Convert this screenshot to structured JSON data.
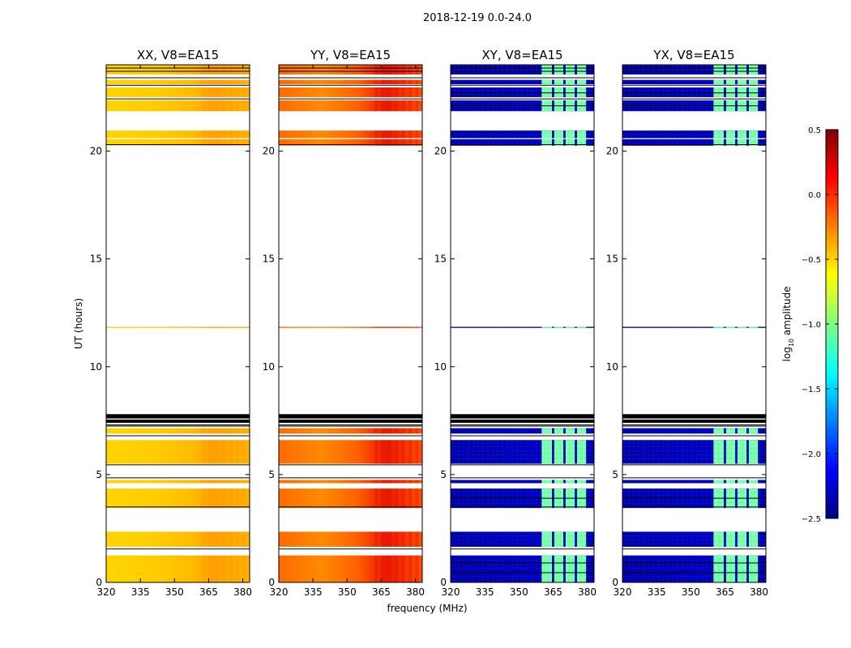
{
  "figure": {
    "suptitle": "2018-12-19 0.0-24.0"
  },
  "chart_data": [
    {
      "type": "heatmap",
      "title": "XX, V8=EA15",
      "xlabel": "",
      "ylabel": "UT (hours)",
      "xlim": [
        320,
        383
      ],
      "ylim": [
        0,
        24
      ],
      "xticks": [
        320,
        335,
        350,
        365,
        380
      ],
      "yticks": [
        0,
        5,
        10,
        15,
        20
      ],
      "palette": "parallel-xx",
      "data_hours": [
        [
          0.0,
          1.25
        ],
        [
          1.65,
          2.35
        ],
        [
          3.45,
          4.35
        ],
        [
          4.6,
          4.75
        ],
        [
          5.5,
          6.6
        ],
        [
          6.9,
          7.15
        ],
        [
          11.8,
          11.85
        ],
        [
          20.25,
          20.55
        ],
        [
          20.6,
          20.95
        ],
        [
          21.85,
          22.35
        ],
        [
          22.5,
          22.95
        ],
        [
          23.1,
          23.3
        ],
        [
          23.55,
          24.0
        ]
      ],
      "dense_flag_hours": [
        [
          7.4,
          7.55
        ],
        [
          7.6,
          7.8
        ]
      ],
      "flag_lines_hours": [
        1.55,
        3.5,
        4.85,
        5.45,
        6.8,
        7.25,
        7.3,
        20.3,
        22.42,
        23.05,
        23.4,
        23.7,
        23.85
      ]
    },
    {
      "type": "heatmap",
      "title": "YY, V8=EA15",
      "xlabel": "frequency (MHz)",
      "ylabel": "",
      "xlim": [
        320,
        383
      ],
      "ylim": [
        0,
        24
      ],
      "xticks": [
        320,
        335,
        350,
        365,
        380
      ],
      "yticks": [
        0,
        5,
        10,
        15,
        20
      ],
      "palette": "parallel-yy",
      "data_hours": [
        [
          0.0,
          1.25
        ],
        [
          1.65,
          2.35
        ],
        [
          3.45,
          4.35
        ],
        [
          4.6,
          4.75
        ],
        [
          5.5,
          6.6
        ],
        [
          6.9,
          7.15
        ],
        [
          11.8,
          11.85
        ],
        [
          20.25,
          20.55
        ],
        [
          20.6,
          20.95
        ],
        [
          21.85,
          22.35
        ],
        [
          22.5,
          22.95
        ],
        [
          23.1,
          23.3
        ],
        [
          23.55,
          24.0
        ]
      ],
      "dense_flag_hours": [
        [
          7.4,
          7.55
        ],
        [
          7.6,
          7.8
        ]
      ],
      "flag_lines_hours": [
        1.55,
        3.5,
        4.85,
        5.45,
        6.8,
        7.25,
        7.3,
        20.3,
        22.42,
        23.05,
        23.4,
        23.7,
        23.85
      ]
    },
    {
      "type": "heatmap",
      "title": "XY, V8=EA15",
      "xlabel": "",
      "ylabel": "",
      "xlim": [
        320,
        383
      ],
      "ylim": [
        0,
        24
      ],
      "xticks": [
        320,
        335,
        350,
        365,
        380
      ],
      "yticks": [
        0,
        5,
        10,
        15,
        20
      ],
      "palette": "cross",
      "highlight_mhz": [
        [
          360,
          364.5
        ],
        [
          365.5,
          369.5
        ],
        [
          370.5,
          374.5
        ],
        [
          375.5,
          379.5
        ]
      ],
      "data_hours": [
        [
          0.0,
          1.25
        ],
        [
          1.65,
          2.35
        ],
        [
          3.45,
          4.35
        ],
        [
          4.6,
          4.75
        ],
        [
          5.5,
          6.6
        ],
        [
          6.9,
          7.15
        ],
        [
          11.8,
          11.85
        ],
        [
          20.25,
          20.55
        ],
        [
          20.6,
          20.95
        ],
        [
          21.85,
          22.35
        ],
        [
          22.5,
          22.95
        ],
        [
          23.1,
          23.3
        ],
        [
          23.55,
          24.0
        ]
      ],
      "dense_flag_hours": [
        [
          7.4,
          7.55
        ],
        [
          7.6,
          7.8
        ]
      ],
      "flag_lines_hours": [
        0.45,
        0.9,
        1.55,
        3.5,
        3.9,
        4.85,
        5.45,
        6.8,
        7.25,
        7.3,
        20.3,
        22.1,
        22.42,
        22.7,
        23.05,
        23.4,
        23.7,
        23.85
      ]
    },
    {
      "type": "heatmap",
      "title": "YX, V8=EA15",
      "xlabel": "",
      "ylabel": "",
      "xlim": [
        320,
        383
      ],
      "ylim": [
        0,
        24
      ],
      "xticks": [
        320,
        335,
        350,
        365,
        380
      ],
      "yticks": [
        0,
        5,
        10,
        15,
        20
      ],
      "palette": "cross",
      "highlight_mhz": [
        [
          360,
          364.5
        ],
        [
          365.5,
          369.5
        ],
        [
          370.5,
          374.5
        ],
        [
          375.5,
          379.5
        ]
      ],
      "data_hours": [
        [
          0.0,
          1.25
        ],
        [
          1.65,
          2.35
        ],
        [
          3.45,
          4.35
        ],
        [
          4.6,
          4.75
        ],
        [
          5.5,
          6.6
        ],
        [
          6.9,
          7.15
        ],
        [
          11.8,
          11.85
        ],
        [
          20.25,
          20.55
        ],
        [
          20.6,
          20.95
        ],
        [
          21.85,
          22.35
        ],
        [
          22.5,
          22.95
        ],
        [
          23.1,
          23.3
        ],
        [
          23.55,
          24.0
        ]
      ],
      "dense_flag_hours": [
        [
          7.4,
          7.55
        ],
        [
          7.6,
          7.8
        ]
      ],
      "flag_lines_hours": [
        0.45,
        0.9,
        1.55,
        3.5,
        3.9,
        4.85,
        5.45,
        6.8,
        7.25,
        7.3,
        20.3,
        22.1,
        22.42,
        22.7,
        23.05,
        23.4,
        23.7,
        23.85
      ]
    }
  ],
  "colorbar": {
    "label_prefix": "log",
    "label_sub": "10",
    "label_suffix": " amplitude",
    "range": [
      -2.5,
      0.5
    ],
    "ticks": [
      {
        "value": 0.5,
        "label": "0.5"
      },
      {
        "value": 0.0,
        "label": "0.0"
      },
      {
        "value": -0.5,
        "label": "−0.5"
      },
      {
        "value": -1.0,
        "label": "−1.0"
      },
      {
        "value": -1.5,
        "label": "−1.5"
      },
      {
        "value": -2.0,
        "label": "−2.0"
      },
      {
        "value": -2.5,
        "label": "−2.5"
      }
    ],
    "stops": [
      "#00007f",
      "#0000ff",
      "#0080ff",
      "#00ffff",
      "#80ff80",
      "#ffff00",
      "#ff8000",
      "#ff0000",
      "#7f0000"
    ]
  }
}
